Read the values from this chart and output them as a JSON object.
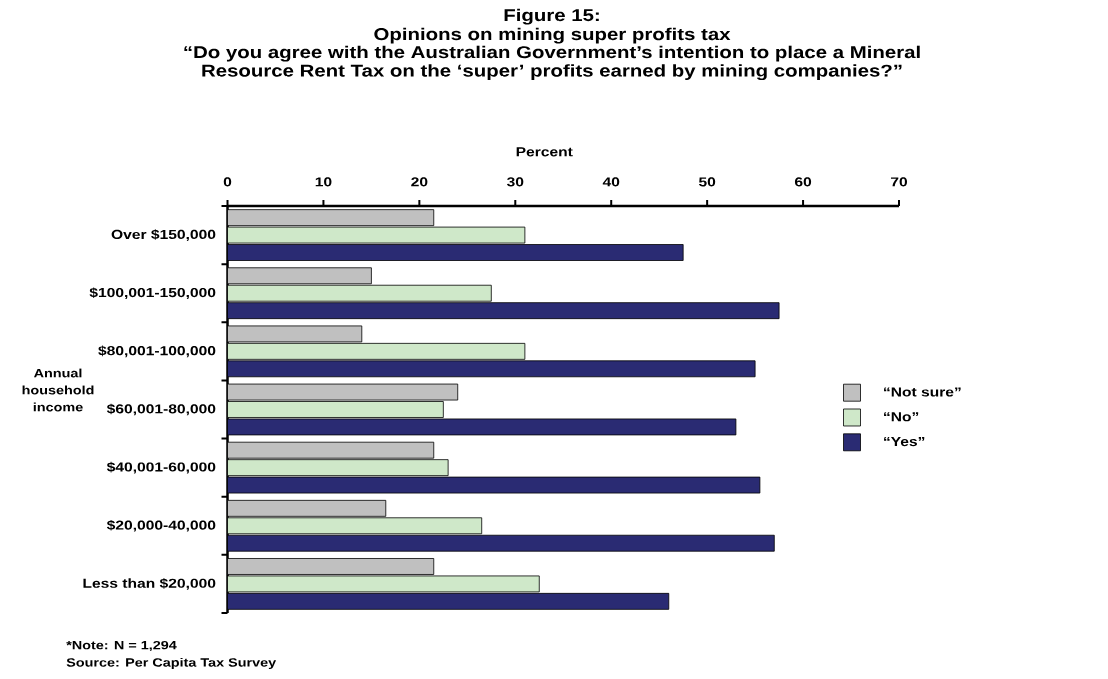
{
  "chart_data": {
    "type": "bar",
    "orientation": "horizontal",
    "title": "Opinions on mining super profits tax",
    "subtitle": "“Do you agree with the Australian Government’s intention to place a Mineral Resource Rent Tax on the ‘super’ profits earned by mining companies?”",
    "xlabel": "Percent",
    "ylabel": "Annual household income",
    "annotations": [
      "Figure 15:",
      "*Note: N = 1,294",
      "Source: Per Capita Tax Survey"
    ],
    "categories": [
      "Over $150,000",
      "$100,001-150,000",
      "$80,001-100,000",
      "$60,001-80,000",
      "$40,001-60,000",
      "$20,000-40,000",
      "Less than $20,000"
    ],
    "series": [
      {
        "name": "“Not sure”",
        "color": "#c0c0c0",
        "values": [
          21.5,
          15,
          14,
          24,
          21.5,
          16.5,
          21.5
        ]
      },
      {
        "name": "“No”",
        "color": "#cfe8c9",
        "values": [
          31,
          27.5,
          31,
          22.5,
          23,
          26.5,
          32.5
        ]
      },
      {
        "name": "“Yes”",
        "color": "#2a2b73",
        "values": [
          47.5,
          57.5,
          55,
          53,
          55.5,
          57,
          46
        ]
      }
    ],
    "xlim": [
      0,
      70
    ],
    "xticks": [
      0,
      10,
      20,
      30,
      40,
      50,
      60,
      70
    ],
    "legend": "right"
  }
}
